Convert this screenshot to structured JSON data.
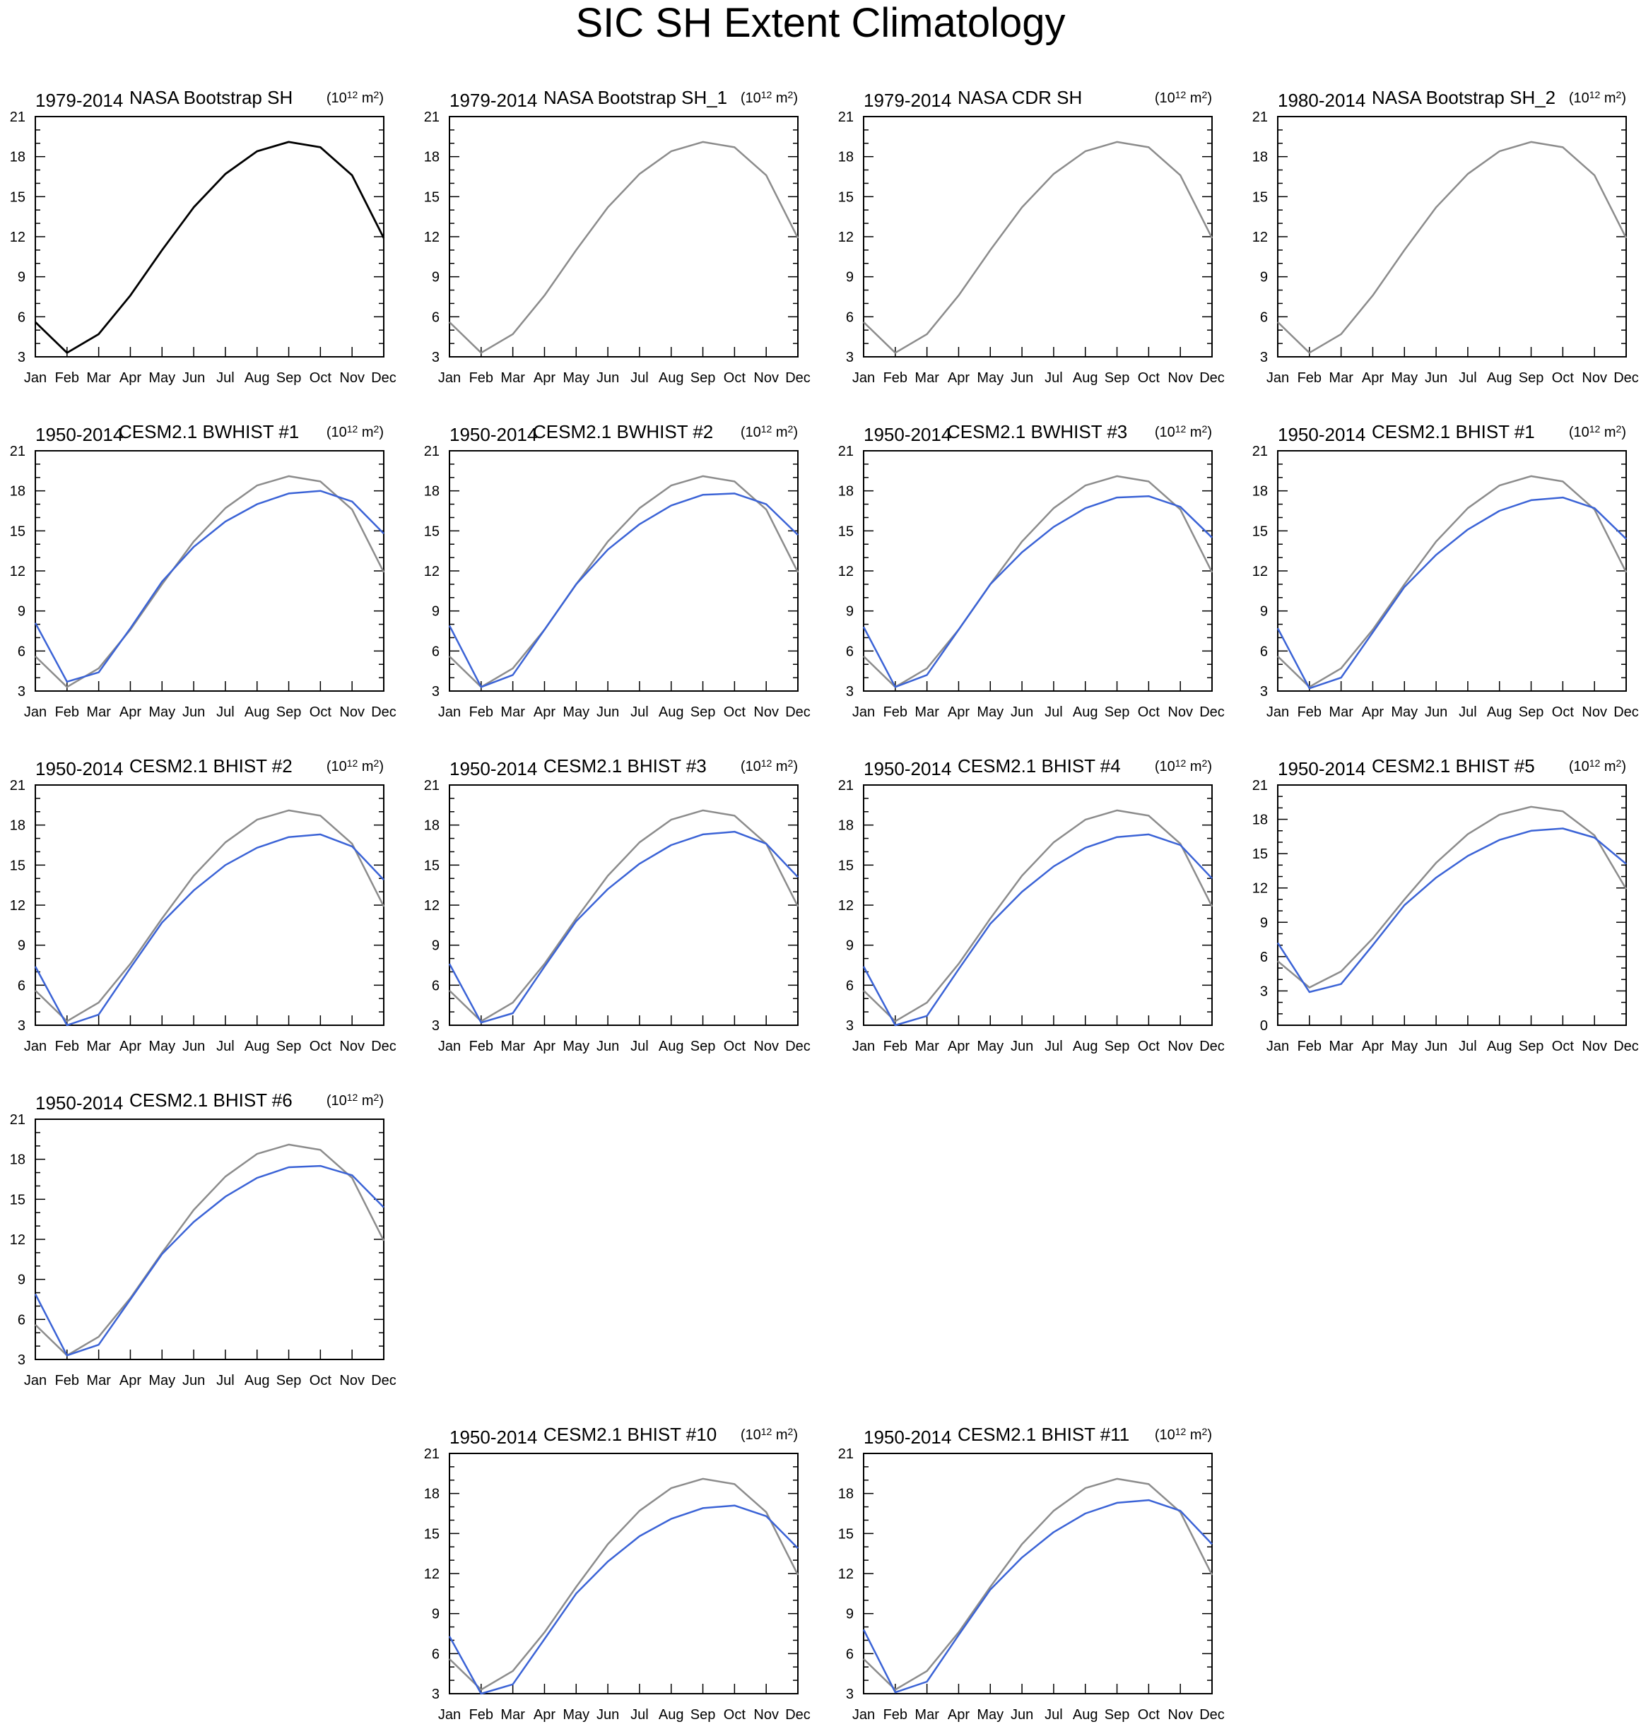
{
  "figure": {
    "title": "SIC SH Extent Climatology",
    "unit_base": "(10",
    "unit_exp": "12",
    "unit_mid": " m",
    "unit_exp2": "2",
    "unit_close": ")",
    "colors": {
      "observed": "#000000",
      "reference": "#8c8c8c",
      "model": "#3b63d6"
    }
  },
  "chart_data": [
    {
      "type": "line",
      "period": "1979-2014",
      "name": "NASA Bootstrap SH",
      "categories": [
        "Jan",
        "Feb",
        "Mar",
        "Apr",
        "May",
        "Jun",
        "Jul",
        "Aug",
        "Sep",
        "Oct",
        "Nov",
        "Dec"
      ],
      "ylim": [
        3,
        21
      ],
      "yticks": [
        3,
        6,
        9,
        12,
        15,
        18,
        21
      ],
      "series": [
        {
          "role": "observed",
          "values": [
            5.6,
            3.3,
            4.7,
            7.6,
            11.0,
            14.2,
            16.7,
            18.4,
            19.1,
            18.7,
            16.6,
            11.9
          ]
        }
      ]
    },
    {
      "type": "line",
      "period": "1979-2014",
      "name": "NASA Bootstrap SH_1",
      "categories": [
        "Jan",
        "Feb",
        "Mar",
        "Apr",
        "May",
        "Jun",
        "Jul",
        "Aug",
        "Sep",
        "Oct",
        "Nov",
        "Dec"
      ],
      "ylim": [
        3,
        21
      ],
      "yticks": [
        3,
        6,
        9,
        12,
        15,
        18,
        21
      ],
      "series": [
        {
          "role": "reference",
          "values": [
            5.6,
            3.3,
            4.7,
            7.6,
            11.0,
            14.2,
            16.7,
            18.4,
            19.1,
            18.7,
            16.6,
            11.9
          ]
        }
      ]
    },
    {
      "type": "line",
      "period": "1979-2014",
      "name": "NASA CDR SH",
      "categories": [
        "Jan",
        "Feb",
        "Mar",
        "Apr",
        "May",
        "Jun",
        "Jul",
        "Aug",
        "Sep",
        "Oct",
        "Nov",
        "Dec"
      ],
      "ylim": [
        3,
        21
      ],
      "yticks": [
        3,
        6,
        9,
        12,
        15,
        18,
        21
      ],
      "series": [
        {
          "role": "reference",
          "values": [
            5.6,
            3.3,
            4.7,
            7.6,
            11.0,
            14.2,
            16.7,
            18.4,
            19.1,
            18.7,
            16.6,
            11.9
          ]
        }
      ]
    },
    {
      "type": "line",
      "period": "1980-2014",
      "name": "NASA Bootstrap SH_2",
      "categories": [
        "Jan",
        "Feb",
        "Mar",
        "Apr",
        "May",
        "Jun",
        "Jul",
        "Aug",
        "Sep",
        "Oct",
        "Nov",
        "Dec"
      ],
      "ylim": [
        3,
        21
      ],
      "yticks": [
        3,
        6,
        9,
        12,
        15,
        18,
        21
      ],
      "series": [
        {
          "role": "reference",
          "values": [
            5.6,
            3.3,
            4.7,
            7.6,
            11.0,
            14.2,
            16.7,
            18.4,
            19.1,
            18.7,
            16.6,
            11.9
          ]
        }
      ]
    },
    {
      "type": "line",
      "period": "1950-2014",
      "name": "CESM2.1 BWHIST #1",
      "categories": [
        "Jan",
        "Feb",
        "Mar",
        "Apr",
        "May",
        "Jun",
        "Jul",
        "Aug",
        "Sep",
        "Oct",
        "Nov",
        "Dec"
      ],
      "ylim": [
        3,
        21
      ],
      "yticks": [
        3,
        6,
        9,
        12,
        15,
        18,
        21
      ],
      "series": [
        {
          "role": "reference",
          "values": [
            5.6,
            3.3,
            4.7,
            7.6,
            11.0,
            14.2,
            16.7,
            18.4,
            19.1,
            18.7,
            16.6,
            11.9
          ]
        },
        {
          "role": "model",
          "values": [
            8.1,
            3.7,
            4.4,
            7.7,
            11.2,
            13.8,
            15.7,
            17.0,
            17.8,
            18.0,
            17.2,
            14.8
          ]
        }
      ]
    },
    {
      "type": "line",
      "period": "1950-2014",
      "name": "CESM2.1 BWHIST #2",
      "categories": [
        "Jan",
        "Feb",
        "Mar",
        "Apr",
        "May",
        "Jun",
        "Jul",
        "Aug",
        "Sep",
        "Oct",
        "Nov",
        "Dec"
      ],
      "ylim": [
        3,
        21
      ],
      "yticks": [
        3,
        6,
        9,
        12,
        15,
        18,
        21
      ],
      "series": [
        {
          "role": "reference",
          "values": [
            5.6,
            3.3,
            4.7,
            7.6,
            11.0,
            14.2,
            16.7,
            18.4,
            19.1,
            18.7,
            16.6,
            11.9
          ]
        },
        {
          "role": "model",
          "values": [
            7.9,
            3.3,
            4.2,
            7.6,
            11.0,
            13.6,
            15.5,
            16.9,
            17.7,
            17.8,
            17.0,
            14.7
          ]
        }
      ]
    },
    {
      "type": "line",
      "period": "1950-2014",
      "name": "CESM2.1 BWHIST #3",
      "categories": [
        "Jan",
        "Feb",
        "Mar",
        "Apr",
        "May",
        "Jun",
        "Jul",
        "Aug",
        "Sep",
        "Oct",
        "Nov",
        "Dec"
      ],
      "ylim": [
        3,
        21
      ],
      "yticks": [
        3,
        6,
        9,
        12,
        15,
        18,
        21
      ],
      "series": [
        {
          "role": "reference",
          "values": [
            5.6,
            3.3,
            4.7,
            7.6,
            11.0,
            14.2,
            16.7,
            18.4,
            19.1,
            18.7,
            16.6,
            11.9
          ]
        },
        {
          "role": "model",
          "values": [
            7.8,
            3.3,
            4.2,
            7.6,
            11.0,
            13.4,
            15.3,
            16.7,
            17.5,
            17.6,
            16.8,
            14.5
          ]
        }
      ]
    },
    {
      "type": "line",
      "period": "1950-2014",
      "name": "CESM2.1 BHIST #1",
      "categories": [
        "Jan",
        "Feb",
        "Mar",
        "Apr",
        "May",
        "Jun",
        "Jul",
        "Aug",
        "Sep",
        "Oct",
        "Nov",
        "Dec"
      ],
      "ylim": [
        3,
        21
      ],
      "yticks": [
        3,
        6,
        9,
        12,
        15,
        18,
        21
      ],
      "series": [
        {
          "role": "reference",
          "values": [
            5.6,
            3.3,
            4.7,
            7.6,
            11.0,
            14.2,
            16.7,
            18.4,
            19.1,
            18.7,
            16.6,
            11.9
          ]
        },
        {
          "role": "model",
          "values": [
            7.7,
            3.2,
            4.0,
            7.4,
            10.8,
            13.2,
            15.1,
            16.5,
            17.3,
            17.5,
            16.7,
            14.4
          ]
        }
      ]
    },
    {
      "type": "line",
      "period": "1950-2014",
      "name": "CESM2.1 BHIST #2",
      "categories": [
        "Jan",
        "Feb",
        "Mar",
        "Apr",
        "May",
        "Jun",
        "Jul",
        "Aug",
        "Sep",
        "Oct",
        "Nov",
        "Dec"
      ],
      "ylim": [
        3,
        21
      ],
      "yticks": [
        3,
        6,
        9,
        12,
        15,
        18,
        21
      ],
      "series": [
        {
          "role": "reference",
          "values": [
            5.6,
            3.3,
            4.7,
            7.6,
            11.0,
            14.2,
            16.7,
            18.4,
            19.1,
            18.7,
            16.6,
            11.9
          ]
        },
        {
          "role": "model",
          "values": [
            7.4,
            3.0,
            3.8,
            7.3,
            10.7,
            13.1,
            15.0,
            16.3,
            17.1,
            17.3,
            16.4,
            13.9
          ]
        }
      ]
    },
    {
      "type": "line",
      "period": "1950-2014",
      "name": "CESM2.1 BHIST #3",
      "categories": [
        "Jan",
        "Feb",
        "Mar",
        "Apr",
        "May",
        "Jun",
        "Jul",
        "Aug",
        "Sep",
        "Oct",
        "Nov",
        "Dec"
      ],
      "ylim": [
        3,
        21
      ],
      "yticks": [
        3,
        6,
        9,
        12,
        15,
        18,
        21
      ],
      "series": [
        {
          "role": "reference",
          "values": [
            5.6,
            3.3,
            4.7,
            7.6,
            11.0,
            14.2,
            16.7,
            18.4,
            19.1,
            18.7,
            16.6,
            11.9
          ]
        },
        {
          "role": "model",
          "values": [
            7.6,
            3.2,
            3.9,
            7.4,
            10.8,
            13.2,
            15.1,
            16.5,
            17.3,
            17.5,
            16.6,
            14.1
          ]
        }
      ]
    },
    {
      "type": "line",
      "period": "1950-2014",
      "name": "CESM2.1 BHIST #4",
      "categories": [
        "Jan",
        "Feb",
        "Mar",
        "Apr",
        "May",
        "Jun",
        "Jul",
        "Aug",
        "Sep",
        "Oct",
        "Nov",
        "Dec"
      ],
      "ylim": [
        3,
        21
      ],
      "yticks": [
        3,
        6,
        9,
        12,
        15,
        18,
        21
      ],
      "series": [
        {
          "role": "reference",
          "values": [
            5.6,
            3.3,
            4.7,
            7.6,
            11.0,
            14.2,
            16.7,
            18.4,
            19.1,
            18.7,
            16.6,
            11.9
          ]
        },
        {
          "role": "model",
          "values": [
            7.4,
            3.0,
            3.7,
            7.2,
            10.6,
            13.0,
            14.9,
            16.3,
            17.1,
            17.3,
            16.5,
            14.0
          ]
        }
      ]
    },
    {
      "type": "line",
      "period": "1950-2014",
      "name": "CESM2.1 BHIST #5",
      "categories": [
        "Jan",
        "Feb",
        "Mar",
        "Apr",
        "May",
        "Jun",
        "Jul",
        "Aug",
        "Sep",
        "Oct",
        "Nov",
        "Dec"
      ],
      "ylim": [
        0,
        21
      ],
      "yticks": [
        0,
        3,
        6,
        9,
        12,
        15,
        18,
        21
      ],
      "series": [
        {
          "role": "reference",
          "values": [
            5.6,
            3.3,
            4.7,
            7.6,
            11.0,
            14.2,
            16.7,
            18.4,
            19.1,
            18.7,
            16.6,
            11.9
          ]
        },
        {
          "role": "model",
          "values": [
            7.2,
            2.9,
            3.6,
            7.0,
            10.5,
            12.9,
            14.8,
            16.2,
            17.0,
            17.2,
            16.4,
            14.1
          ]
        }
      ]
    },
    {
      "type": "line",
      "period": "1950-2014",
      "name": "CESM2.1 BHIST #6",
      "categories": [
        "Jan",
        "Feb",
        "Mar",
        "Apr",
        "May",
        "Jun",
        "Jul",
        "Aug",
        "Sep",
        "Oct",
        "Nov",
        "Dec"
      ],
      "ylim": [
        3,
        21
      ],
      "yticks": [
        3,
        6,
        9,
        12,
        15,
        18,
        21
      ],
      "series": [
        {
          "role": "reference",
          "values": [
            5.6,
            3.3,
            4.7,
            7.6,
            11.0,
            14.2,
            16.7,
            18.4,
            19.1,
            18.7,
            16.6,
            11.9
          ]
        },
        {
          "role": "model",
          "values": [
            7.9,
            3.3,
            4.1,
            7.5,
            10.9,
            13.3,
            15.2,
            16.6,
            17.4,
            17.5,
            16.8,
            14.4
          ]
        }
      ]
    },
    {
      "type": "line",
      "period": "1950-2014",
      "name": "CESM2.1 BHIST #10",
      "categories": [
        "Jan",
        "Feb",
        "Mar",
        "Apr",
        "May",
        "Jun",
        "Jul",
        "Aug",
        "Sep",
        "Oct",
        "Nov",
        "Dec"
      ],
      "ylim": [
        3,
        21
      ],
      "yticks": [
        3,
        6,
        9,
        12,
        15,
        18,
        21
      ],
      "series": [
        {
          "role": "reference",
          "values": [
            5.6,
            3.3,
            4.7,
            7.6,
            11.0,
            14.2,
            16.7,
            18.4,
            19.1,
            18.7,
            16.6,
            11.9
          ]
        },
        {
          "role": "model",
          "values": [
            7.3,
            3.0,
            3.7,
            7.1,
            10.5,
            12.9,
            14.8,
            16.1,
            16.9,
            17.1,
            16.3,
            13.9
          ]
        }
      ]
    },
    {
      "type": "line",
      "period": "1950-2014",
      "name": "CESM2.1 BHIST #11",
      "categories": [
        "Jan",
        "Feb",
        "Mar",
        "Apr",
        "May",
        "Jun",
        "Jul",
        "Aug",
        "Sep",
        "Oct",
        "Nov",
        "Dec"
      ],
      "ylim": [
        3,
        21
      ],
      "yticks": [
        3,
        6,
        9,
        12,
        15,
        18,
        21
      ],
      "series": [
        {
          "role": "reference",
          "values": [
            5.6,
            3.3,
            4.7,
            7.6,
            11.0,
            14.2,
            16.7,
            18.4,
            19.1,
            18.7,
            16.6,
            11.9
          ]
        },
        {
          "role": "model",
          "values": [
            7.8,
            3.1,
            3.9,
            7.4,
            10.8,
            13.2,
            15.1,
            16.5,
            17.3,
            17.5,
            16.7,
            14.2
          ]
        }
      ]
    }
  ]
}
